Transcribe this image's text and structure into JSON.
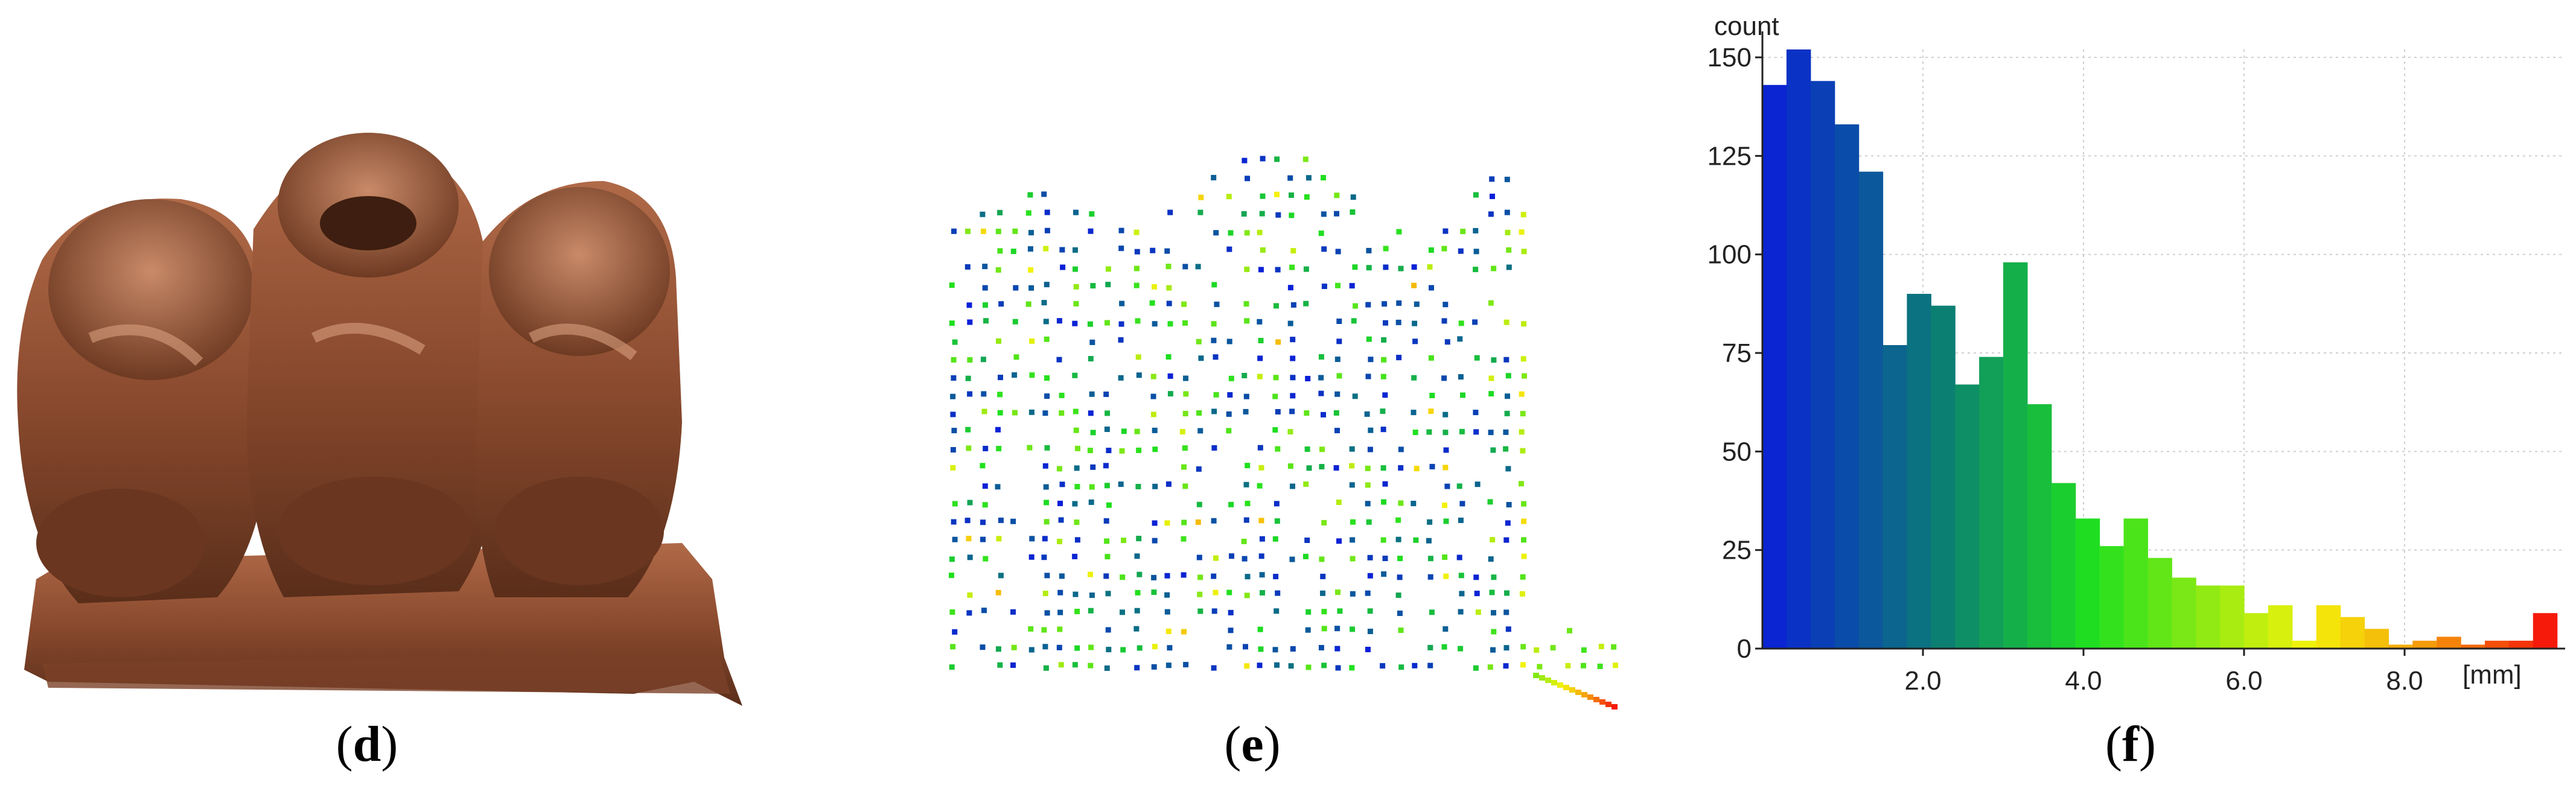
{
  "panels": {
    "d": {
      "caption_letter": "d"
    },
    "e": {
      "caption_letter": "e"
    },
    "f": {
      "caption_letter": "f"
    }
  },
  "colors": {
    "blue": "#0a1fd8",
    "teal": "#0b7a78",
    "green": "#1fe01f",
    "yellow": "#f5f20a",
    "orange": "#f59a0a",
    "red": "#f51a0a",
    "statue_base": "#9a5a3a"
  },
  "chart_data": {
    "type": "bar",
    "title": "",
    "ylabel": "count",
    "xlabel": "[mm]",
    "y_ticks": [
      "0",
      "25",
      "50",
      "75",
      "100",
      "125",
      "150"
    ],
    "x_ticks": [
      "2.0",
      "4.0",
      "6.0",
      "8.0"
    ],
    "x_tick_values": [
      2.0,
      4.0,
      6.0,
      8.0
    ],
    "ylim": [
      0,
      152
    ],
    "xlim": [
      0,
      10
    ],
    "bin_width": 0.3,
    "grid": true,
    "bin_starts": [
      0.0,
      0.3,
      0.6,
      0.9,
      1.2,
      1.5,
      1.8,
      2.1,
      2.4,
      2.7,
      3.0,
      3.3,
      3.6,
      3.9,
      4.2,
      4.5,
      4.8,
      5.1,
      5.4,
      5.7,
      6.0,
      6.3,
      6.6,
      6.9,
      7.2,
      7.5,
      7.8,
      8.1,
      8.4,
      8.7,
      9.0,
      9.3,
      9.6
    ],
    "values": [
      143,
      152,
      144,
      133,
      121,
      77,
      90,
      87,
      67,
      74,
      98,
      62,
      42,
      33,
      26,
      33,
      23,
      18,
      16,
      16,
      9,
      11,
      2,
      11,
      8,
      5,
      1,
      2,
      3,
      1,
      2,
      2,
      9
    ]
  }
}
